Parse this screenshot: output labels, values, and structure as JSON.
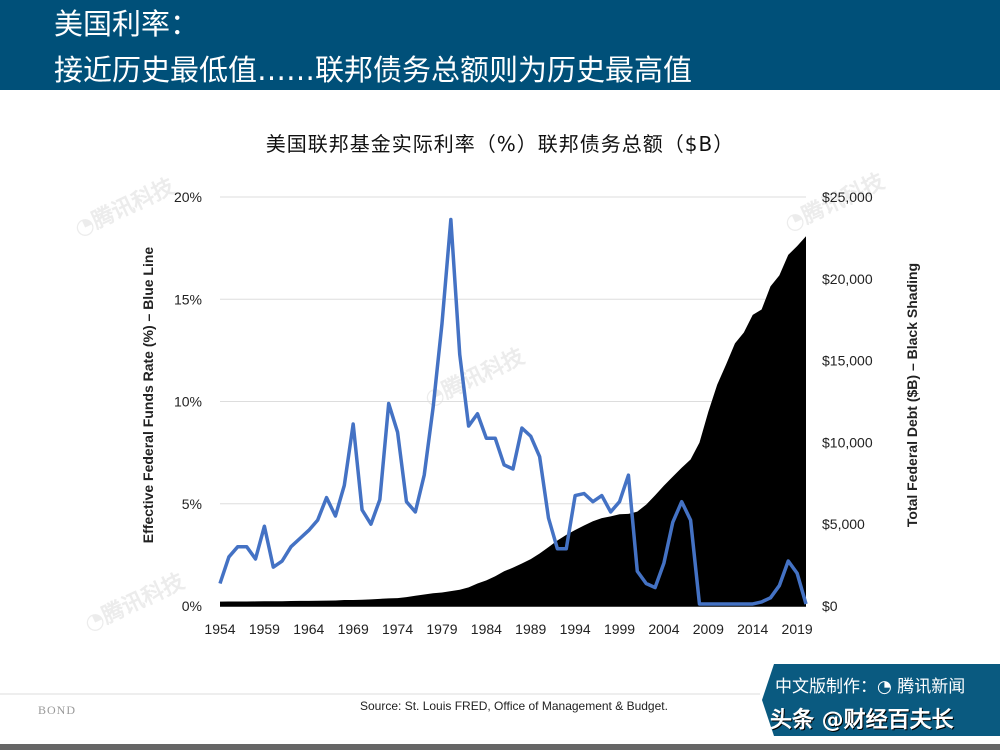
{
  "header": {
    "line1": "美国利率：",
    "line2": "接近历史最低值……联邦债务总额则为历史最高值"
  },
  "chart_data": {
    "type": "line",
    "title": "美国联邦基金实际利率（%）联邦债务总额（$B）",
    "x": [
      1954,
      1955,
      1956,
      1957,
      1958,
      1959,
      1960,
      1961,
      1962,
      1963,
      1964,
      1965,
      1966,
      1967,
      1968,
      1969,
      1970,
      1971,
      1972,
      1973,
      1974,
      1975,
      1976,
      1977,
      1978,
      1979,
      1980,
      1981,
      1982,
      1983,
      1984,
      1985,
      1986,
      1987,
      1988,
      1989,
      1990,
      1991,
      1992,
      1993,
      1994,
      1995,
      1996,
      1997,
      1998,
      1999,
      2000,
      2001,
      2002,
      2003,
      2004,
      2005,
      2006,
      2007,
      2008,
      2009,
      2010,
      2011,
      2012,
      2013,
      2014,
      2015,
      2016,
      2017,
      2018,
      2019,
      2020
    ],
    "xtick_labels": [
      "1954",
      "1959",
      "1964",
      "1969",
      "1974",
      "1979",
      "1984",
      "1989",
      "1994",
      "1999",
      "2004",
      "2009",
      "2014",
      "2019"
    ],
    "series": [
      {
        "name": "Effective Federal Funds Rate (%) – Blue Line",
        "axis": "left",
        "style": "line",
        "color": "#4472c4",
        "values": [
          1.1,
          2.4,
          2.9,
          2.9,
          2.3,
          3.9,
          1.9,
          2.2,
          2.9,
          3.3,
          3.7,
          4.2,
          5.3,
          4.4,
          5.9,
          8.9,
          4.7,
          4.0,
          5.2,
          9.9,
          8.5,
          5.1,
          4.6,
          6.4,
          9.7,
          13.8,
          18.9,
          12.3,
          8.8,
          9.4,
          8.2,
          8.2,
          6.9,
          6.7,
          8.7,
          8.3,
          7.3,
          4.3,
          2.8,
          2.8,
          5.4,
          5.5,
          5.1,
          5.4,
          4.6,
          5.1,
          6.4,
          1.7,
          1.1,
          0.9,
          2.1,
          4.1,
          5.1,
          4.2,
          0.1,
          0.1,
          0.1,
          0.1,
          0.1,
          0.1,
          0.1,
          0.2,
          0.4,
          1.0,
          2.2,
          1.6,
          0.1
        ]
      },
      {
        "name": "Total Federal Debt ($B) – Black Shading",
        "axis": "right",
        "style": "area",
        "color": "#000000",
        "values": [
          271,
          274,
          273,
          272,
          280,
          287,
          291,
          293,
          303,
          310,
          316,
          322,
          328,
          340,
          369,
          366,
          381,
          408,
          436,
          466,
          484,
          542,
          629,
          706,
          777,
          829,
          909,
          995,
          1137,
          1372,
          1565,
          1817,
          2121,
          2346,
          2601,
          2868,
          3206,
          3598,
          4002,
          4351,
          4643,
          4921,
          5181,
          5369,
          5478,
          5606,
          5629,
          5770,
          6198,
          6760,
          7355,
          7905,
          8451,
          8951,
          9986,
          11876,
          13529,
          14764,
          16051,
          16719,
          17794,
          18120,
          19539,
          20206,
          21462,
          22000,
          22600
        ]
      }
    ],
    "left_axis": {
      "label": "Effective Federal Funds Rate (%) – Blue Line",
      "range": [
        0,
        20
      ],
      "ticks": [
        "0%",
        "5%",
        "10%",
        "15%",
        "20%"
      ]
    },
    "right_axis": {
      "label": "Total Federal Debt ($B) – Black Shading",
      "range": [
        0,
        25000
      ],
      "ticks": [
        "$0",
        "$5,000",
        "$10,000",
        "$15,000",
        "$20,000",
        "$25,000"
      ]
    },
    "grid": true
  },
  "footer": {
    "source": "Source: St. Louis FRED, Office of Management & Budget.",
    "brand": "BOND",
    "badge_line1": "中文版制作：◔ 腾讯新闻",
    "badge_line2": "头条 @财经百夫长"
  },
  "watermark": "腾讯科技"
}
